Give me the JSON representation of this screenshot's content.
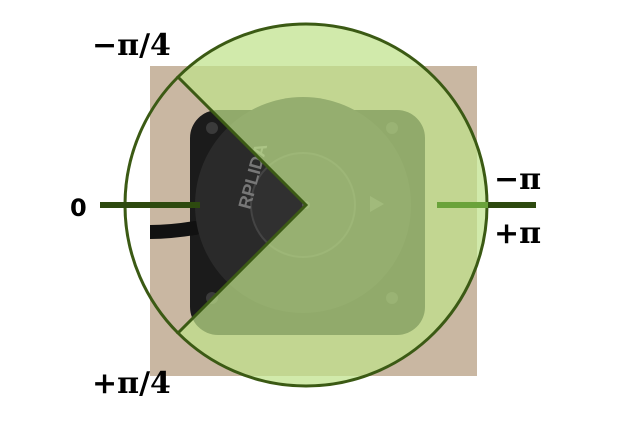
{
  "labels": {
    "neg_quarter_pi": "−π/4",
    "pos_quarter_pi": "+π/4",
    "zero": "0",
    "neg_pi": "−π",
    "pos_pi": "+π"
  },
  "device": {
    "brand_text": "RPLIDA"
  },
  "colors": {
    "sector_fill": "#bfe28a",
    "sector_stroke": "#3b5a14",
    "axis_dark": "#2d4a0f",
    "axis_light": "#6aa33a",
    "device_body": "#1a1a1a",
    "background_panel": "#c9b7a2"
  }
}
